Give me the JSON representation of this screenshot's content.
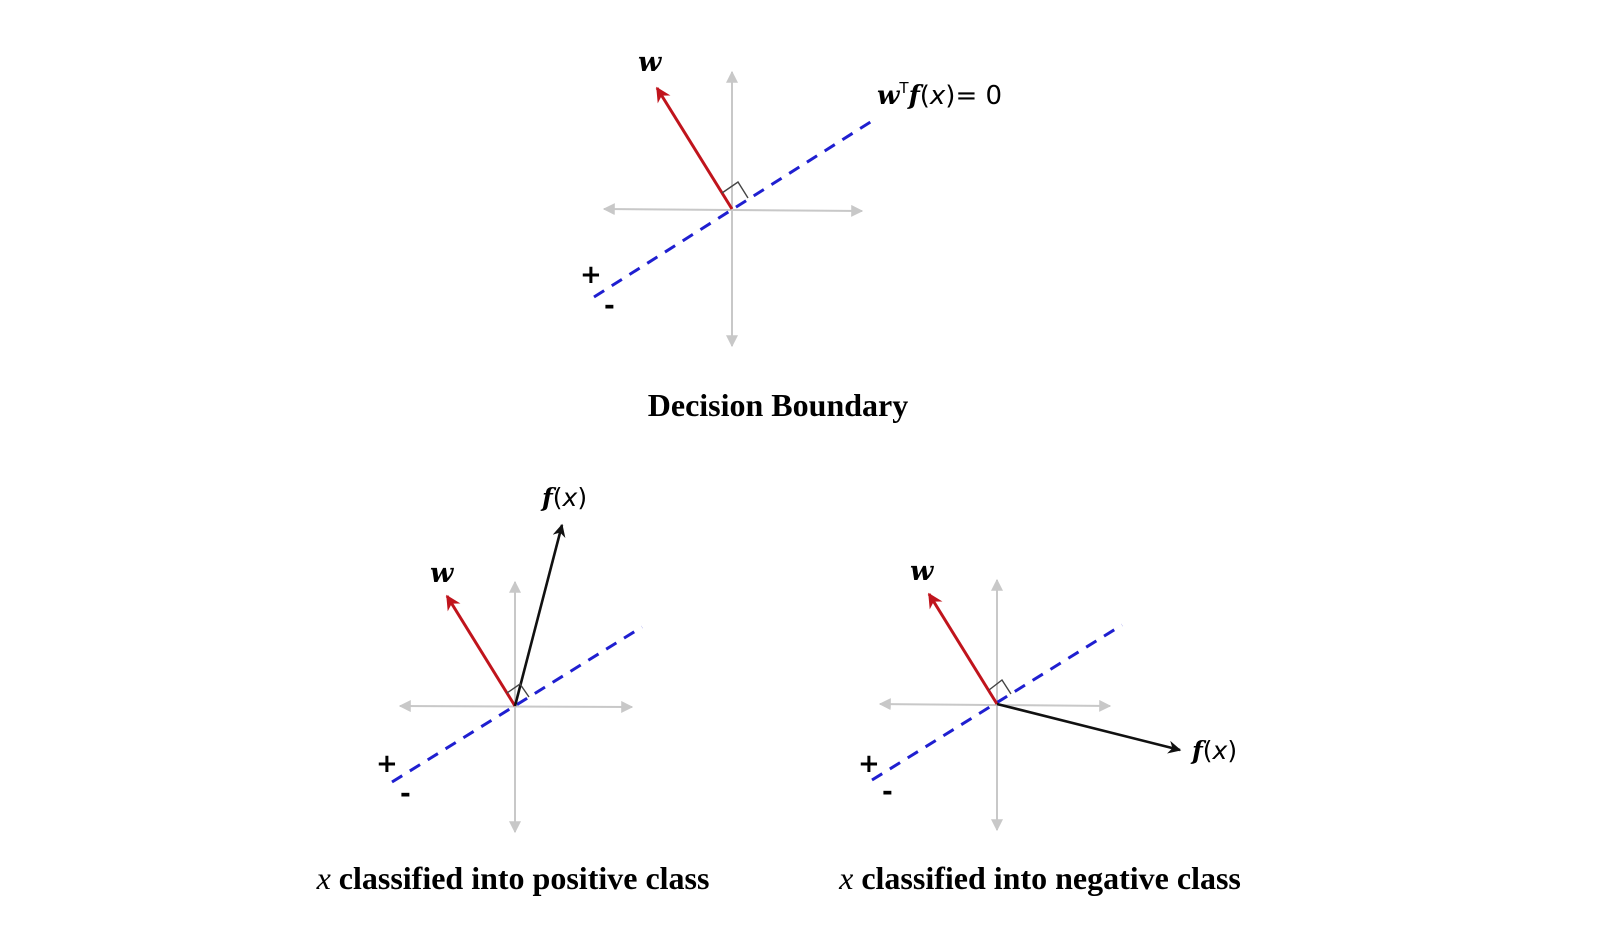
{
  "colors": {
    "axes": "#c8c8c8",
    "decision_boundary": "#1f1fd0",
    "w_vector": "#c0141c",
    "f_vector": "#111111",
    "background": "#ffffff"
  },
  "panels": [
    {
      "id": "decision-boundary",
      "w_label": "w",
      "boundary_equation": {
        "w": "w",
        "transpose": "T",
        "f": "f",
        "open": "(",
        "x": "x",
        "close_eq": ")= 0"
      },
      "plus": "+",
      "minus": "-",
      "caption": "Decision Boundary"
    },
    {
      "id": "positive",
      "w_label": "w",
      "f_label": {
        "f": "f",
        "open": "(",
        "x": "x",
        "close": ")"
      },
      "plus": "+",
      "minus": "-",
      "caption": {
        "var": "x",
        "text": " classified into positive class"
      }
    },
    {
      "id": "negative",
      "w_label": "w",
      "f_label": {
        "f": "f",
        "open": "(",
        "x": "x",
        "close": ")"
      },
      "plus": "+",
      "minus": "-",
      "caption": {
        "var": "x",
        "text": " classified into negative class"
      }
    }
  ]
}
